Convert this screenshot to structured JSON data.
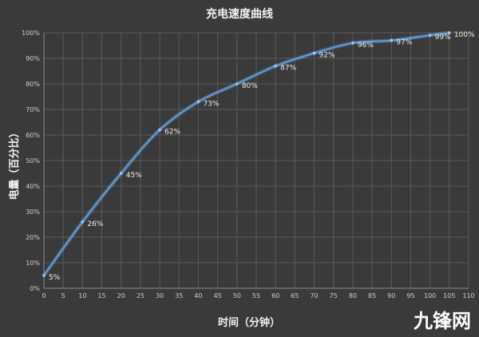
{
  "chart_data": {
    "type": "line",
    "title": "充电速度曲线",
    "xlabel": "时间（分钟）",
    "ylabel": "电量（百分比）",
    "x_ticks": [
      0,
      5,
      10,
      15,
      20,
      25,
      30,
      35,
      40,
      45,
      50,
      55,
      60,
      65,
      70,
      75,
      80,
      85,
      90,
      95,
      100,
      105,
      110
    ],
    "y_ticks": [
      "0%",
      "10%",
      "20%",
      "30%",
      "40%",
      "50%",
      "60%",
      "70%",
      "80%",
      "90%",
      "100%"
    ],
    "xlim": [
      0,
      110
    ],
    "ylim": [
      0,
      100
    ],
    "grid": true,
    "series": [
      {
        "x": [
          0,
          10,
          20,
          30,
          40,
          50,
          60,
          70,
          80,
          90,
          100,
          105
        ],
        "y": [
          5,
          26,
          45,
          62,
          73,
          80,
          87,
          92,
          96,
          97,
          99,
          100
        ],
        "labels": [
          "5%",
          "26%",
          "45%",
          "62%",
          "73%",
          "80%",
          "87%",
          "92%",
          "96%",
          "97%",
          "99%",
          "100%"
        ],
        "color": "#5b9bd5"
      }
    ]
  },
  "watermark": "九锋网"
}
